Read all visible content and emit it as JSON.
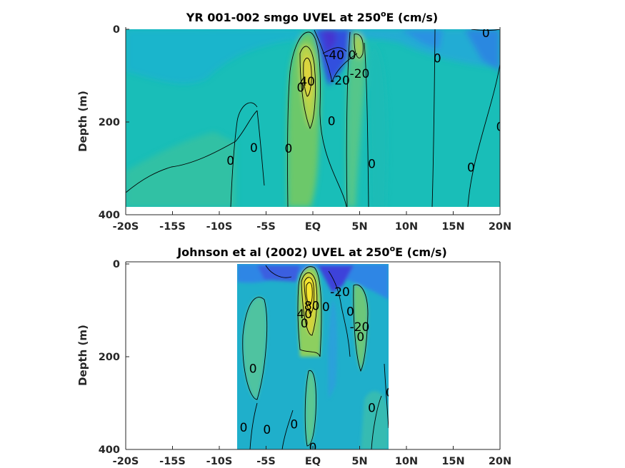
{
  "chart_data": [
    {
      "type": "filled-contour",
      "title": "YR 001-002 smgo UVEL at 250",
      "title_superscript": "o",
      "title_suffix": "E (cm/s)",
      "ylabel": "Depth (m)",
      "xlim": [
        -20,
        20
      ],
      "ylim": [
        0,
        400
      ],
      "y_reversed": true,
      "x_ticks": [
        -20,
        -15,
        -10,
        -5,
        0,
        5,
        10,
        15,
        20
      ],
      "x_tick_labels": [
        "-20S",
        "-15S",
        "-10S",
        "-5S",
        "EQ",
        "5N",
        "10N",
        "15N",
        "20N"
      ],
      "y_ticks": [
        0,
        200,
        400
      ],
      "y_tick_labels": [
        "0",
        "200",
        "400"
      ],
      "data_extent": {
        "lat": [
          -20,
          20
        ],
        "depth": [
          0,
          385
        ]
      },
      "contour_labels": [
        {
          "text": "0",
          "lat": 18.5,
          "depth": 8
        },
        {
          "text": "-40",
          "lat": 2.3,
          "depth": 55
        },
        {
          "text": "0",
          "lat": 4.2,
          "depth": 55
        },
        {
          "text": "0",
          "lat": 13.3,
          "depth": 62
        },
        {
          "text": "-20",
          "lat": 5.0,
          "depth": 95
        },
        {
          "text": "-20",
          "lat": 2.9,
          "depth": 110
        },
        {
          "text": "40",
          "lat": -0.6,
          "depth": 112
        },
        {
          "text": "0",
          "lat": -1.3,
          "depth": 125
        },
        {
          "text": "0",
          "lat": 2.0,
          "depth": 198
        },
        {
          "text": "0",
          "lat": 20.0,
          "depth": 210
        },
        {
          "text": "0",
          "lat": -6.3,
          "depth": 255
        },
        {
          "text": "0",
          "lat": -2.6,
          "depth": 257
        },
        {
          "text": "0",
          "lat": -8.8,
          "depth": 283
        },
        {
          "text": "0",
          "lat": 6.3,
          "depth": 290
        },
        {
          "text": "0",
          "lat": 16.9,
          "depth": 298
        }
      ]
    },
    {
      "type": "filled-contour",
      "title": "Johnson et al (2002) UVEL at 250",
      "title_superscript": "o",
      "title_suffix": "E (cm/s)",
      "ylabel": "Depth (m)",
      "xlim": [
        -20,
        20
      ],
      "ylim": [
        0,
        400
      ],
      "y_reversed": true,
      "x_ticks": [
        -20,
        -15,
        -10,
        -5,
        0,
        5,
        10,
        15,
        20
      ],
      "x_tick_labels": [
        "-20S",
        "-15S",
        "-10S",
        "-5S",
        "EQ",
        "5N",
        "10N",
        "15N",
        "20N"
      ],
      "y_ticks": [
        0,
        200,
        400
      ],
      "y_tick_labels": [
        "0",
        "200",
        "400"
      ],
      "data_extent": {
        "lat": [
          -8,
          8.2
        ],
        "depth": [
          0,
          400
        ]
      },
      "contour_labels": [
        {
          "text": "-20",
          "lat": 2.9,
          "depth": 60
        },
        {
          "text": "80",
          "lat": -0.1,
          "depth": 90
        },
        {
          "text": "0",
          "lat": 1.4,
          "depth": 92
        },
        {
          "text": "0",
          "lat": 4.0,
          "depth": 102
        },
        {
          "text": "40",
          "lat": -0.9,
          "depth": 108
        },
        {
          "text": "0",
          "lat": -0.9,
          "depth": 128
        },
        {
          "text": "-20",
          "lat": 5.0,
          "depth": 135
        },
        {
          "text": "0",
          "lat": 5.1,
          "depth": 157
        },
        {
          "text": "0",
          "lat": -6.4,
          "depth": 225
        },
        {
          "text": "0",
          "lat": 8.2,
          "depth": 277
        },
        {
          "text": "0",
          "lat": 6.3,
          "depth": 310
        },
        {
          "text": "0",
          "lat": -2.0,
          "depth": 345
        },
        {
          "text": "0",
          "lat": -7.4,
          "depth": 352
        },
        {
          "text": "0",
          "lat": -4.9,
          "depth": 357
        },
        {
          "text": "0",
          "lat": 0.0,
          "depth": 395
        }
      ]
    }
  ],
  "colors": {
    "background": "#19BEB8",
    "negative_strong": "#3F4FE0",
    "negative_mid": "#2F8AE6",
    "positive_mid": "#7DCB6A",
    "positive_strong": "#F4DA30",
    "axis": "#262626"
  }
}
